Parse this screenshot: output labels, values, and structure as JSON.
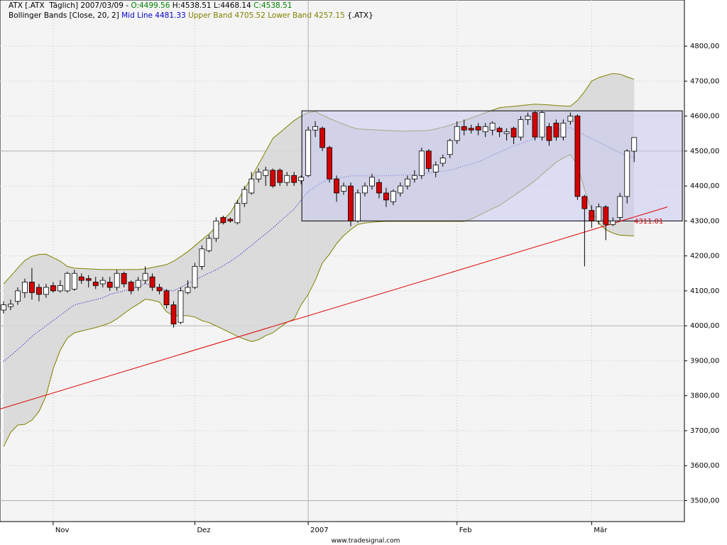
{
  "chart_data": {
    "type": "candlestick",
    "legend": [
      [
        {
          "text": "ATX [.ATX  Täglich] 2007/03/09 - ",
          "color": "#000000"
        },
        {
          "text": "O:4499.56",
          "color": "#008000"
        },
        {
          "text": " H:4538.51 L:4468.14 ",
          "color": "#000000"
        },
        {
          "text": "C:4538.51",
          "color": "#008000"
        }
      ],
      [
        {
          "text": "Bollinger Bands [Close, 20, 2] ",
          "color": "#000000"
        },
        {
          "text": "Mid Line 4481.33",
          "color": "#0000cc"
        },
        {
          "text": " Upper Band 4705.52 Lower Band 4257.15",
          "color": "#808000"
        },
        {
          "text": " {.ATX}",
          "color": "#000000"
        }
      ]
    ],
    "categories": [
      null,
      null,
      null,
      null,
      null,
      null,
      null,
      "Nov",
      null,
      null,
      null,
      null,
      null,
      null,
      null,
      null,
      null,
      null,
      null,
      null,
      null,
      null,
      null,
      null,
      null,
      null,
      null,
      "Dez",
      null,
      null,
      null,
      null,
      null,
      null,
      null,
      null,
      null,
      null,
      null,
      null,
      null,
      null,
      null,
      "2007",
      null,
      null,
      null,
      null,
      null,
      null,
      null,
      null,
      null,
      null,
      null,
      null,
      null,
      null,
      null,
      null,
      null,
      null,
      null,
      null,
      "Feb",
      null,
      null,
      null,
      null,
      null,
      null,
      null,
      null,
      null,
      null,
      null,
      null,
      null,
      null,
      null,
      null,
      null,
      null,
      "Mär",
      null,
      null,
      null,
      null,
      null,
      null
    ],
    "open": [
      4045,
      4055,
      4070,
      4095,
      4125,
      4110,
      4090,
      4115,
      4100,
      4100,
      4105,
      4140,
      4135,
      4125,
      4120,
      4125,
      4110,
      4150,
      4125,
      4110,
      4130,
      4140,
      4110,
      4100,
      4060,
      4010,
      4095,
      4110,
      4170,
      4215,
      4250,
      4310,
      4305,
      4295,
      4350,
      4380,
      4420,
      4430,
      4445,
      4445,
      4410,
      4430,
      4415,
      4430,
      4560,
      4565,
      4510,
      4420,
      4385,
      4400,
      4300,
      4380,
      4400,
      4410,
      4380,
      4355,
      4380,
      4400,
      4420,
      4430,
      4500,
      4440,
      4465,
      4490,
      4530,
      4570,
      4565,
      4570,
      4555,
      4560,
      4565,
      4550,
      4565,
      4540,
      4590,
      4610,
      4540,
      4570,
      4580,
      4540,
      4585,
      4600,
      4370,
      4330,
      4300,
      4340,
      4290,
      4310,
      4370,
      4499.56
    ],
    "high": [
      4070,
      4075,
      4110,
      4135,
      4165,
      4120,
      4120,
      4125,
      4130,
      4155,
      4160,
      4150,
      4145,
      4140,
      4140,
      4140,
      4160,
      4155,
      4130,
      4140,
      4170,
      4150,
      4120,
      4105,
      4070,
      4110,
      4130,
      4180,
      4230,
      4260,
      4310,
      4315,
      4310,
      4360,
      4400,
      4440,
      4450,
      4455,
      4450,
      4450,
      4440,
      4440,
      4430,
      4570,
      4585,
      4570,
      4515,
      4430,
      4410,
      4410,
      4390,
      4410,
      4435,
      4420,
      4395,
      4390,
      4410,
      4430,
      4445,
      4510,
      4505,
      4470,
      4490,
      4535,
      4585,
      4590,
      4575,
      4580,
      4580,
      4585,
      4570,
      4565,
      4570,
      4600,
      4610,
      4615,
      4615,
      4580,
      4590,
      4590,
      4610,
      4605,
      4375,
      4345,
      4350,
      4345,
      4310,
      4380,
      4505,
      4538.51
    ],
    "low": [
      4035,
      4045,
      4060,
      4080,
      4075,
      4070,
      4080,
      4095,
      4095,
      4095,
      4100,
      4120,
      4110,
      4105,
      4110,
      4100,
      4100,
      4110,
      4090,
      4100,
      4120,
      4100,
      4090,
      4050,
      3995,
      4005,
      4090,
      4105,
      4160,
      4210,
      4240,
      4290,
      4295,
      4290,
      4340,
      4375,
      4410,
      4400,
      4395,
      4400,
      4400,
      4400,
      4405,
      4425,
      4540,
      4500,
      4410,
      4355,
      4375,
      4285,
      4295,
      4370,
      4390,
      4365,
      4340,
      4345,
      4370,
      4390,
      4410,
      4420,
      4440,
      4425,
      4455,
      4480,
      4520,
      4545,
      4550,
      4545,
      4540,
      4545,
      4540,
      4530,
      4520,
      4530,
      4575,
      4530,
      4530,
      4515,
      4530,
      4530,
      4575,
      4360,
      4170,
      4280,
      4290,
      4245,
      4285,
      4300,
      4350,
      4468.14
    ],
    "close": [
      4060,
      4062,
      4100,
      4125,
      4095,
      4090,
      4110,
      4100,
      4115,
      4150,
      4150,
      4130,
      4130,
      4115,
      4130,
      4110,
      4150,
      4120,
      4100,
      4130,
      4150,
      4110,
      4100,
      4060,
      4005,
      4100,
      4110,
      4170,
      4220,
      4250,
      4300,
      4295,
      4300,
      4350,
      4390,
      4420,
      4440,
      4445,
      4400,
      4410,
      4430,
      4410,
      4425,
      4560,
      4570,
      4510,
      4420,
      4380,
      4400,
      4300,
      4380,
      4400,
      4425,
      4380,
      4360,
      4385,
      4400,
      4420,
      4430,
      4500,
      4450,
      4460,
      4480,
      4530,
      4570,
      4560,
      4560,
      4560,
      4570,
      4580,
      4555,
      4555,
      4540,
      4590,
      4600,
      4540,
      4610,
      4530,
      4540,
      4580,
      4600,
      4370,
      4335,
      4300,
      4340,
      4290,
      4300,
      4370,
      4500,
      4538.51
    ],
    "up_color": "#ffffff",
    "down_color": "#d40000",
    "upper_band": {
      "color": "#808000",
      "values": [
        4120,
        4142,
        4165,
        4187,
        4199,
        4204,
        4205,
        4195,
        4185,
        4170,
        4165,
        4164,
        4163,
        4162,
        4161,
        4161,
        4161,
        4161,
        4161,
        4161,
        4163,
        4167,
        4171,
        4175,
        4185,
        4198,
        4212,
        4229,
        4246,
        4263,
        4283,
        4303,
        4323,
        4357,
        4391,
        4425,
        4462,
        4499,
        4536,
        4553,
        4570,
        4587,
        4600,
        4610,
        4613,
        4603,
        4593,
        4585,
        4577,
        4569,
        4563,
        4562,
        4561,
        4560,
        4559,
        4558,
        4557,
        4557,
        4558,
        4558,
        4559,
        4563,
        4568,
        4574,
        4580,
        4587,
        4594,
        4602,
        4609,
        4617,
        4624,
        4626,
        4628,
        4630,
        4632,
        4634,
        4633,
        4632,
        4630,
        4629,
        4628,
        4645,
        4670,
        4700,
        4710,
        4716,
        4722,
        4720,
        4712,
        4705.52
      ]
    },
    "lower_band": {
      "color": "#808000",
      "values": [
        3654,
        3695,
        3716,
        3718,
        3730,
        3755,
        3800,
        3877,
        3930,
        3965,
        3980,
        3985,
        3990,
        3995,
        4001,
        4008,
        4020,
        4035,
        4050,
        4062,
        4076,
        4073,
        4068,
        4040,
        4029,
        4029,
        4029,
        4025,
        4015,
        4009,
        4000,
        3990,
        3980,
        3970,
        3962,
        3955,
        3960,
        3972,
        3980,
        3995,
        4010,
        4019,
        4060,
        4090,
        4130,
        4180,
        4205,
        4235,
        4258,
        4275,
        4290,
        4294,
        4296,
        4298,
        4299,
        4299,
        4299,
        4299,
        4299,
        4299,
        4299,
        4299,
        4299,
        4299,
        4299,
        4299,
        4305,
        4315,
        4325,
        4335,
        4344,
        4358,
        4372,
        4386,
        4400,
        4415,
        4433,
        4450,
        4468,
        4480,
        4490,
        4460,
        4390,
        4330,
        4293,
        4275,
        4265,
        4259,
        4258,
        4257.15
      ]
    },
    "mid_line": {
      "color": "#0000cc",
      "values": [
        3898,
        3915,
        3932,
        3950,
        3970,
        3985,
        4000,
        4015,
        4030,
        4045,
        4060,
        4065,
        4070,
        4075,
        4080,
        4090,
        4095,
        4100,
        4105,
        4112,
        4121,
        4115,
        4108,
        4102,
        4100,
        4110,
        4121,
        4131,
        4141,
        4151,
        4160,
        4172,
        4184,
        4198,
        4214,
        4230,
        4247,
        4263,
        4280,
        4298,
        4316,
        4334,
        4359,
        4384,
        4398,
        4411,
        4418,
        4422,
        4425,
        4429,
        4429,
        4429,
        4429,
        4429,
        4429,
        4430,
        4431,
        4432,
        4433,
        4435,
        4437,
        4440,
        4442,
        4445,
        4451,
        4457,
        4463,
        4469,
        4478,
        4488,
        4497,
        4506,
        4514,
        4521,
        4529,
        4536,
        4543,
        4551,
        4559,
        4565,
        4567,
        4557,
        4545,
        4535,
        4526,
        4515,
        4505,
        4495,
        4488,
        4481.33
      ]
    },
    "band_fill": "#d8d8d8",
    "trend_line": {
      "x": [
        -0.5,
        93.7
      ],
      "y": [
        3762,
        4340
      ],
      "color": "#e00000",
      "label": "4311.01"
    },
    "rectangle": {
      "x": [
        42.1,
        95.8
      ],
      "y": [
        4300,
        4615
      ],
      "fill": "#c8c8f0",
      "stroke": "#000000"
    },
    "ylim": [
      3440,
      4932
    ],
    "yticks": [
      {
        "value": 3500,
        "label": "3500,00"
      },
      {
        "value": 3600,
        "label": "3600,00"
      },
      {
        "value": 3700,
        "label": "3700,00"
      },
      {
        "value": 3800,
        "label": "3800,00"
      },
      {
        "value": 3900,
        "label": "3900,00"
      },
      {
        "value": 4000,
        "label": "4000,00"
      },
      {
        "value": 4100,
        "label": "4100,00"
      },
      {
        "value": 4200,
        "label": "4200,00"
      },
      {
        "value": 4300,
        "label": "4300,00"
      },
      {
        "value": 4400,
        "label": "4400,00"
      },
      {
        "value": 4500,
        "label": "4500,00"
      },
      {
        "value": 4600,
        "label": "4600,00"
      },
      {
        "value": 4700,
        "label": "4700,00"
      },
      {
        "value": 4800,
        "label": "4800,00"
      }
    ],
    "grid": true,
    "footer": "www.tradesignal.com"
  }
}
